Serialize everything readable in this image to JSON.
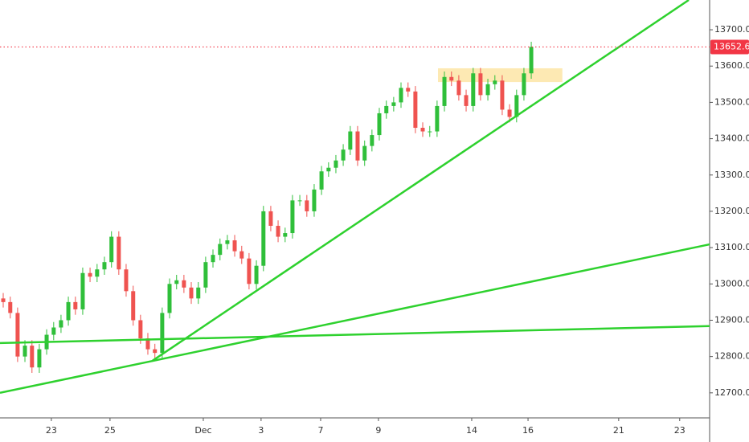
{
  "chart_data": {
    "type": "candlestick",
    "x": [
      -1.64,
      -1.4,
      -1.15,
      -0.9,
      -0.66,
      -0.41,
      -0.16,
      0.08,
      0.33,
      0.58,
      0.82,
      1.07,
      1.32,
      1.56,
      1.81,
      2.05,
      2.3,
      2.55,
      2.79,
      3.04,
      3.29,
      3.53,
      3.78,
      4.03,
      4.27,
      4.52,
      4.77,
      5.01,
      5.26,
      5.51,
      5.75,
      6.0,
      6.25,
      6.49,
      6.74,
      6.99,
      7.23,
      7.48,
      7.73,
      7.97,
      8.22,
      8.47,
      8.71,
      8.96,
      9.21,
      9.45,
      9.7,
      9.95,
      10.19,
      10.44,
      10.68,
      10.93,
      11.18,
      11.42,
      11.67,
      11.92,
      12.16,
      12.41,
      12.66,
      12.9,
      13.15,
      13.4,
      13.64,
      13.89,
      14.14,
      14.38,
      14.63,
      14.88,
      15.12,
      15.37,
      15.62,
      15.86,
      16.11,
      16.36
    ],
    "open": [
      12960,
      12950,
      12920,
      12800,
      12830,
      12770,
      12820,
      12860,
      12880,
      12900,
      12950,
      12930,
      13030,
      13020,
      13040,
      13060,
      13130,
      13040,
      12980,
      12900,
      12850,
      12820,
      12810,
      12920,
      13000,
      13010,
      12990,
      12960,
      12990,
      13060,
      13080,
      13110,
      13120,
      13090,
      13070,
      13000,
      13050,
      13200,
      13160,
      13130,
      13140,
      13230,
      13230,
      13200,
      13260,
      13310,
      13320,
      13340,
      13370,
      13420,
      13340,
      13380,
      13410,
      13470,
      13490,
      13500,
      13540,
      13530,
      13430,
      13420,
      13420,
      13490,
      13570,
      13560,
      13520,
      13490,
      13580,
      13520,
      13550,
      13560,
      13480,
      13460,
      13520,
      13580
    ],
    "high": [
      12975,
      12965,
      12935,
      12845,
      12845,
      12835,
      12875,
      12895,
      12915,
      12965,
      12965,
      13045,
      13045,
      13055,
      13075,
      13145,
      13145,
      13055,
      12995,
      12915,
      12865,
      12835,
      12935,
      13015,
      13025,
      13025,
      13005,
      13005,
      13075,
      13095,
      13125,
      13135,
      13135,
      13105,
      13085,
      13065,
      13215,
      13215,
      13175,
      13155,
      13245,
      13245,
      13245,
      13275,
      13325,
      13335,
      13355,
      13385,
      13435,
      13435,
      13395,
      13425,
      13485,
      13505,
      13515,
      13555,
      13555,
      13545,
      13445,
      13435,
      13505,
      13585,
      13585,
      13575,
      13535,
      13595,
      13595,
      13565,
      13575,
      13575,
      13495,
      13535,
      13595,
      13667
    ],
    "low": [
      12935,
      12905,
      12785,
      12785,
      12755,
      12755,
      12805,
      12845,
      12865,
      12885,
      12915,
      12915,
      13005,
      13005,
      13025,
      13045,
      13025,
      12965,
      12885,
      12835,
      12805,
      12790,
      12795,
      12905,
      12985,
      12975,
      12945,
      12945,
      12975,
      13045,
      13065,
      13095,
      13075,
      13055,
      12985,
      12985,
      13035,
      13145,
      13115,
      13115,
      13125,
      13215,
      13185,
      13185,
      13245,
      13295,
      13305,
      13325,
      13355,
      13325,
      13325,
      13365,
      13395,
      13455,
      13475,
      13485,
      13515,
      13415,
      13405,
      13405,
      13405,
      13475,
      13545,
      13505,
      13475,
      13475,
      13505,
      13505,
      13535,
      13465,
      13445,
      13445,
      13505,
      13565
    ],
    "close": [
      12950,
      12920,
      12800,
      12830,
      12770,
      12820,
      12860,
      12880,
      12900,
      12950,
      12930,
      13030,
      13020,
      13040,
      13060,
      13130,
      13040,
      12980,
      12900,
      12850,
      12820,
      12810,
      12920,
      13000,
      13010,
      12990,
      12960,
      12990,
      13060,
      13080,
      13110,
      13120,
      13090,
      13070,
      13000,
      13050,
      13200,
      13160,
      13130,
      13140,
      13230,
      13230,
      13200,
      13260,
      13310,
      13320,
      13340,
      13370,
      13420,
      13340,
      13380,
      13410,
      13470,
      13490,
      13500,
      13540,
      13530,
      13430,
      13420,
      13420,
      13490,
      13570,
      13560,
      13520,
      13490,
      13580,
      13520,
      13550,
      13560,
      13480,
      13460,
      13520,
      13580,
      13652.65
    ],
    "up_color": "#2fbf3a",
    "down_color": "#ef5350",
    "xlim": [
      -1.75,
      22.44
    ],
    "xticks": [
      {
        "value": 0,
        "label": "23"
      },
      {
        "value": 2.0,
        "label": "25"
      },
      {
        "value": 5.18,
        "label": "Dec"
      },
      {
        "value": 7.15,
        "label": "3"
      },
      {
        "value": 9.18,
        "label": "7"
      },
      {
        "value": 11.15,
        "label": "9"
      },
      {
        "value": 14.33,
        "label": "14"
      },
      {
        "value": 16.25,
        "label": "16"
      },
      {
        "value": 19.34,
        "label": "21"
      },
      {
        "value": 21.42,
        "label": "23"
      }
    ],
    "ylim": [
      12631,
      13782
    ],
    "yticks": [
      {
        "value": 12700,
        "label": "12700.00"
      },
      {
        "value": 12800,
        "label": "12800.00"
      },
      {
        "value": 12900,
        "label": "12900.00"
      },
      {
        "value": 13000,
        "label": "13000.00"
      },
      {
        "value": 13100,
        "label": "13100.00"
      },
      {
        "value": 13200,
        "label": "13200.00"
      },
      {
        "value": 13300,
        "label": "13300.00"
      },
      {
        "value": 13400,
        "label": "13400.00"
      },
      {
        "value": 13500,
        "label": "13500.00"
      },
      {
        "value": 13600,
        "label": "13600.00"
      },
      {
        "value": 13700,
        "label": "13700.00"
      }
    ],
    "last_price": 13652.65,
    "last_price_color": "#f23645",
    "zone": {
      "x": [
        13.18,
        17.42
      ],
      "y": [
        13556,
        13594
      ],
      "color": "#fde9b3"
    },
    "trendlines": [
      {
        "x": [
          3.45,
          21.73
        ],
        "y": [
          12788.5,
          13782
        ]
      },
      {
        "x": [
          -1.75,
          22.44
        ],
        "y": [
          12700,
          13109
        ]
      },
      {
        "x": [
          -1.75,
          22.44
        ],
        "y": [
          12837,
          12884
        ]
      }
    ],
    "trendline_color": "#2ed12e"
  }
}
